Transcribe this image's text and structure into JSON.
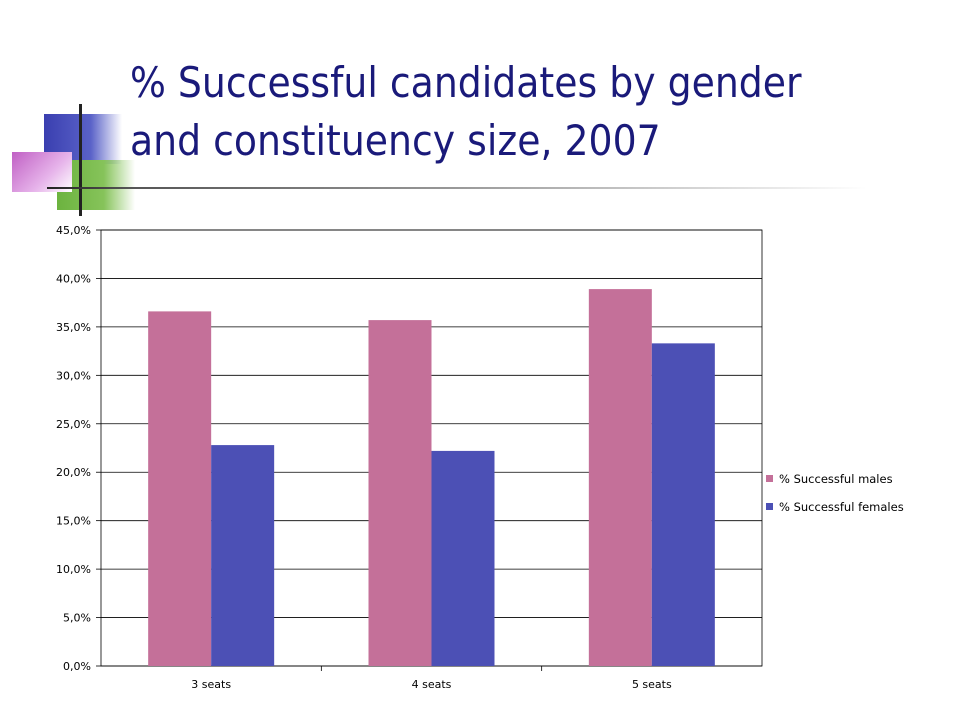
{
  "slide": {
    "title": "% Successful candidates by gender and constituency size, 2007"
  },
  "chart_data": {
    "type": "bar",
    "title": "",
    "xlabel": "",
    "ylabel": "",
    "categories": [
      "3 seats",
      "4 seats",
      "5 seats"
    ],
    "series": [
      {
        "name": "% Successful males",
        "values": [
          36.6,
          35.7,
          38.9
        ],
        "color": "#c47099"
      },
      {
        "name": "% Successful females",
        "values": [
          22.8,
          22.2,
          33.3
        ],
        "color": "#4c50b5"
      }
    ],
    "ylim": [
      0,
      45
    ],
    "yticks": [
      "0,0%",
      "5,0%",
      "10,0%",
      "15,0%",
      "20,0%",
      "25,0%",
      "30,0%",
      "35,0%",
      "40,0%",
      "45,0%"
    ],
    "grid": true,
    "legend_position": "right"
  }
}
